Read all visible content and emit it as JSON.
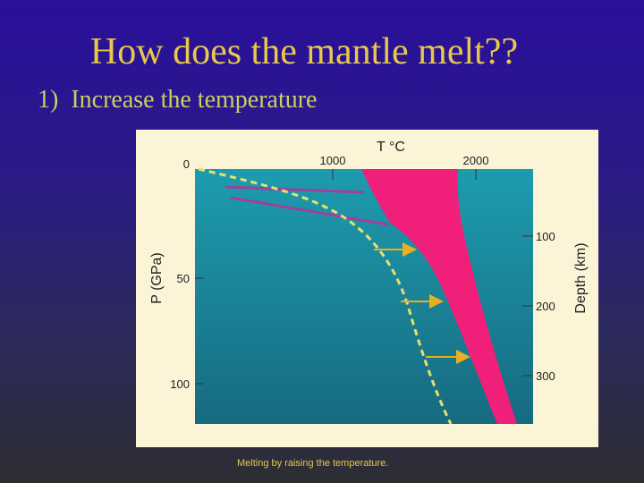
{
  "slide": {
    "title": "How does the mantle melt??",
    "bullet_number": "1)",
    "bullet_text": "Increase the temperature",
    "caption": "Melting by raising the temperature."
  },
  "figure": {
    "top_axis_label": "T °C",
    "top_ticks": [
      "1000",
      "2000"
    ],
    "left_axis_label": "P (GPa)",
    "left_ticks": [
      "0",
      "50",
      "100"
    ],
    "right_axis_label": "Depth (km)",
    "right_ticks": [
      "100",
      "200",
      "300"
    ],
    "colors": {
      "plot_background": "#1e8fa0",
      "melt_region": "#f0207a",
      "geotherm_dashed": "#e8e070",
      "solidus_lines": "#a0409a",
      "arrows": "#e8b020",
      "figure_background": "#fbf4d6"
    }
  }
}
